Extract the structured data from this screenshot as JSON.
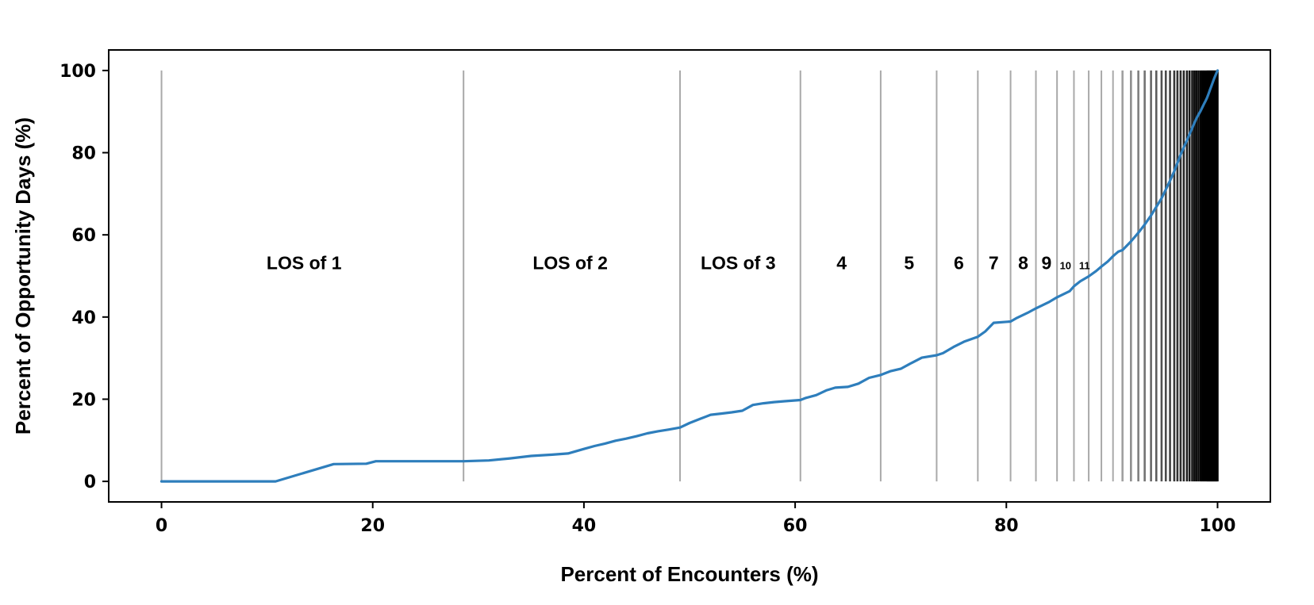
{
  "chart_data": {
    "type": "line",
    "title": "",
    "xlabel": "Percent of Encounters (%)",
    "ylabel": "Percent of Opportunity Days (%)",
    "xlim": [
      -5,
      105
    ],
    "ylim": [
      -5,
      105
    ],
    "grid": false,
    "xticks": [
      0,
      20,
      40,
      60,
      80,
      100
    ],
    "yticks": [
      0,
      20,
      40,
      60,
      80,
      100
    ],
    "line_color": "#2e7ebc",
    "boundary_color": "#a9a9a9",
    "boundaries": [
      0,
      28.6,
      49.1,
      60.5,
      68.1,
      73.4,
      77.3,
      80.4,
      82.8,
      84.8,
      86.4,
      87.8,
      89.0,
      90.1,
      91.0,
      91.8,
      92.5,
      93.1,
      93.7,
      94.2,
      94.7,
      95.1,
      95.5,
      95.9,
      96.2,
      96.5,
      96.8,
      97.1,
      97.35,
      97.6,
      97.8,
      98.0,
      98.2,
      98.4,
      98.55,
      98.7,
      98.85,
      99.0,
      99.1,
      99.2,
      99.3,
      99.4,
      99.5,
      99.6,
      99.7,
      99.8,
      99.9,
      100
    ],
    "region_labels": [
      {
        "text": "LOS of 1",
        "x": 13.5,
        "y": 52
      },
      {
        "text": "LOS of 2",
        "x": 38.7,
        "y": 52
      },
      {
        "text": "LOS of 3",
        "x": 54.6,
        "y": 52
      },
      {
        "text": "4",
        "x": 64.4,
        "y": 52
      },
      {
        "text": "5",
        "x": 70.8,
        "y": 52
      },
      {
        "text": "6",
        "x": 75.5,
        "y": 52
      },
      {
        "text": "7",
        "x": 78.8,
        "y": 52
      },
      {
        "text": "8",
        "x": 81.6,
        "y": 52
      },
      {
        "text": "9",
        "x": 83.8,
        "y": 52
      },
      {
        "text": "10",
        "x": 85.6,
        "y": 52
      },
      {
        "text": "11",
        "x": 87.4,
        "y": 52
      }
    ],
    "series": [
      {
        "x": [
          0,
          10.8,
          16.3,
          19.4,
          20.3,
          28.6,
          31,
          33,
          35,
          37,
          38.5,
          40,
          41,
          42,
          43,
          44,
          45,
          46,
          47,
          48,
          49.1,
          50,
          51,
          52,
          53,
          54,
          55,
          56,
          57,
          58,
          59,
          60.5,
          61,
          62,
          63,
          63.8,
          65,
          66,
          67,
          68.1,
          69,
          70,
          71,
          72,
          73.4,
          74,
          75,
          76,
          77.3,
          78,
          78.8,
          80.4,
          81,
          82,
          82.8,
          84,
          84.8,
          86,
          86.4,
          87,
          87.8,
          88.5,
          89,
          89.6,
          90.1,
          90.6,
          91,
          91.8,
          92.5,
          93.1,
          93.7,
          94.2,
          94.7,
          95.1,
          95.5,
          95.9,
          96.2,
          96.5,
          96.8,
          97.1,
          97.35,
          97.6,
          97.8,
          98,
          98.2,
          98.4,
          98.55,
          98.7,
          98.85,
          99,
          99.1,
          99.2,
          99.3,
          99.4,
          99.5,
          99.6,
          99.7,
          99.8,
          99.9,
          100
        ],
        "y": [
          0,
          0,
          4.2,
          4.3,
          4.9,
          4.9,
          5.1,
          5.6,
          6.2,
          6.5,
          6.8,
          7.9,
          8.6,
          9.2,
          9.9,
          10.4,
          11,
          11.7,
          12.2,
          12.6,
          13.1,
          14.2,
          15.2,
          16.2,
          16.5,
          16.8,
          17.2,
          18.6,
          19,
          19.3,
          19.5,
          19.8,
          20.3,
          21,
          22.2,
          22.8,
          23,
          23.8,
          25.2,
          25.9,
          26.8,
          27.4,
          28.8,
          30.1,
          30.7,
          31.2,
          32.7,
          34,
          35.2,
          36.5,
          38.6,
          38.9,
          39.8,
          41,
          42.1,
          43.6,
          44.8,
          46.3,
          47.5,
          48.7,
          49.9,
          51.2,
          52.3,
          53.5,
          54.8,
          55.9,
          56.3,
          58.4,
          60.5,
          62.5,
          64.7,
          66.8,
          68.9,
          71,
          73.2,
          75.5,
          77.5,
          79.5,
          81.3,
          83,
          84.5,
          86,
          87.2,
          88.3,
          89.3,
          90.2,
          91,
          91.8,
          92.5,
          93.3,
          94,
          94.7,
          95.4,
          96.1,
          96.8,
          97.5,
          98.2,
          98.8,
          99.4,
          100
        ]
      }
    ]
  }
}
